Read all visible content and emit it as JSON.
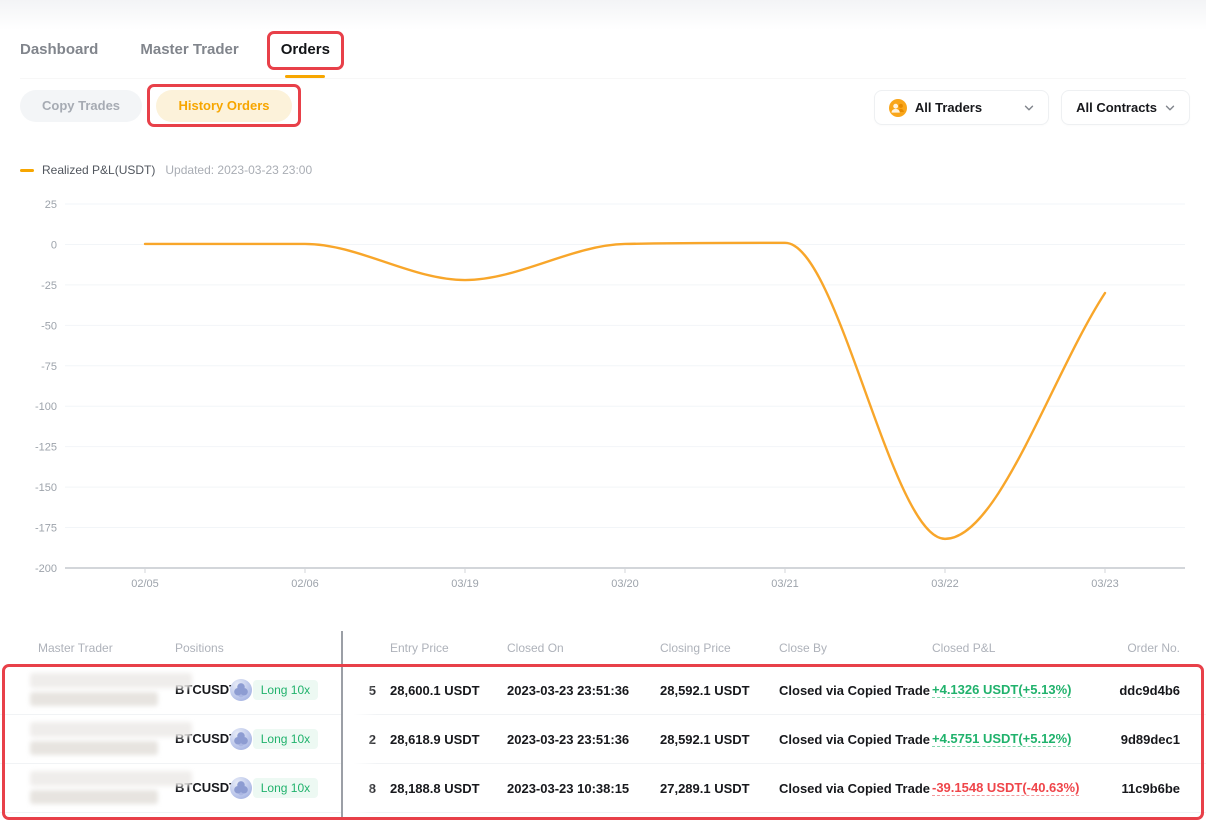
{
  "tabs": {
    "items": [
      {
        "label": "Dashboard",
        "active": false
      },
      {
        "label": "Master Trader",
        "active": false
      },
      {
        "label": "Orders",
        "active": true
      }
    ]
  },
  "subtabs": {
    "items": [
      {
        "label": "Copy Trades",
        "active": false
      },
      {
        "label": "History Orders",
        "active": true
      }
    ]
  },
  "filters": {
    "traders_label": "All Traders",
    "contracts_label": "All Contracts",
    "traders_icon": "people-group-icon",
    "chevron_icon": "chevron-down-icon"
  },
  "chart_data": {
    "type": "line",
    "title": "Realized P&L(USDT)",
    "updated": "Updated: 2023-03-23 23:00",
    "categories": [
      "02/05",
      "02/06",
      "03/19",
      "03/20",
      "03/21",
      "03/22",
      "03/23"
    ],
    "series": [
      {
        "name": "Realized P&L(USDT)",
        "color": "#f8a62a",
        "values": [
          0.3,
          0.3,
          -22,
          0.3,
          1,
          -182,
          -30
        ]
      }
    ],
    "ylim": [
      -200,
      25
    ],
    "yticks": [
      25,
      0,
      -25,
      -50,
      -75,
      -100,
      -125,
      -150,
      -175,
      -200
    ],
    "grid": true,
    "smooth": true,
    "legend_position": "top-left"
  },
  "table": {
    "columns": [
      {
        "label": "Master Trader"
      },
      {
        "label": "Positions"
      },
      {
        "label": ""
      },
      {
        "label": "Entry Price"
      },
      {
        "label": "Closed On"
      },
      {
        "label": "Closing Price"
      },
      {
        "label": "Close By"
      },
      {
        "label": "Closed P&L"
      },
      {
        "label": "Order No."
      }
    ],
    "rows": [
      {
        "symbol": "BTCUSDT",
        "side_badge": "Long 10x",
        "qty_clipped": "5",
        "entry_price": "28,600.1 USDT",
        "closed_on": "2023-03-23 23:51:36",
        "closing_price": "28,592.1 USDT",
        "close_by": "Closed via Copied Trade",
        "closed_pnl": "+4.1326 USDT(+5.13%)",
        "pnl_positive": true,
        "order_no": "ddc9d4b6"
      },
      {
        "symbol": "BTCUSDT",
        "side_badge": "Long 10x",
        "qty_clipped": "2",
        "entry_price": "28,618.9 USDT",
        "closed_on": "2023-03-23 23:51:36",
        "closing_price": "28,592.1 USDT",
        "close_by": "Closed via Copied Trade",
        "closed_pnl": "+4.5751 USDT(+5.12%)",
        "pnl_positive": true,
        "order_no": "9d89dec1"
      },
      {
        "symbol": "BTCUSDT",
        "side_badge": "Long 10x",
        "qty_clipped": "8",
        "entry_price": "28,188.8 USDT",
        "closed_on": "2023-03-23 10:38:15",
        "closing_price": "27,289.1 USDT",
        "close_by": "Closed via Copied Trade",
        "closed_pnl": "-39.1548 USDT(-40.63%)",
        "pnl_positive": false,
        "order_no": "11c9b6be"
      }
    ]
  },
  "colors": {
    "accent_orange": "#f7a600",
    "positive_green": "#20b26c",
    "negative_red": "#ef454a",
    "annotation_red": "#e84049",
    "inactive_gray": "#81858c",
    "header_gray": "#aeb2ba"
  }
}
